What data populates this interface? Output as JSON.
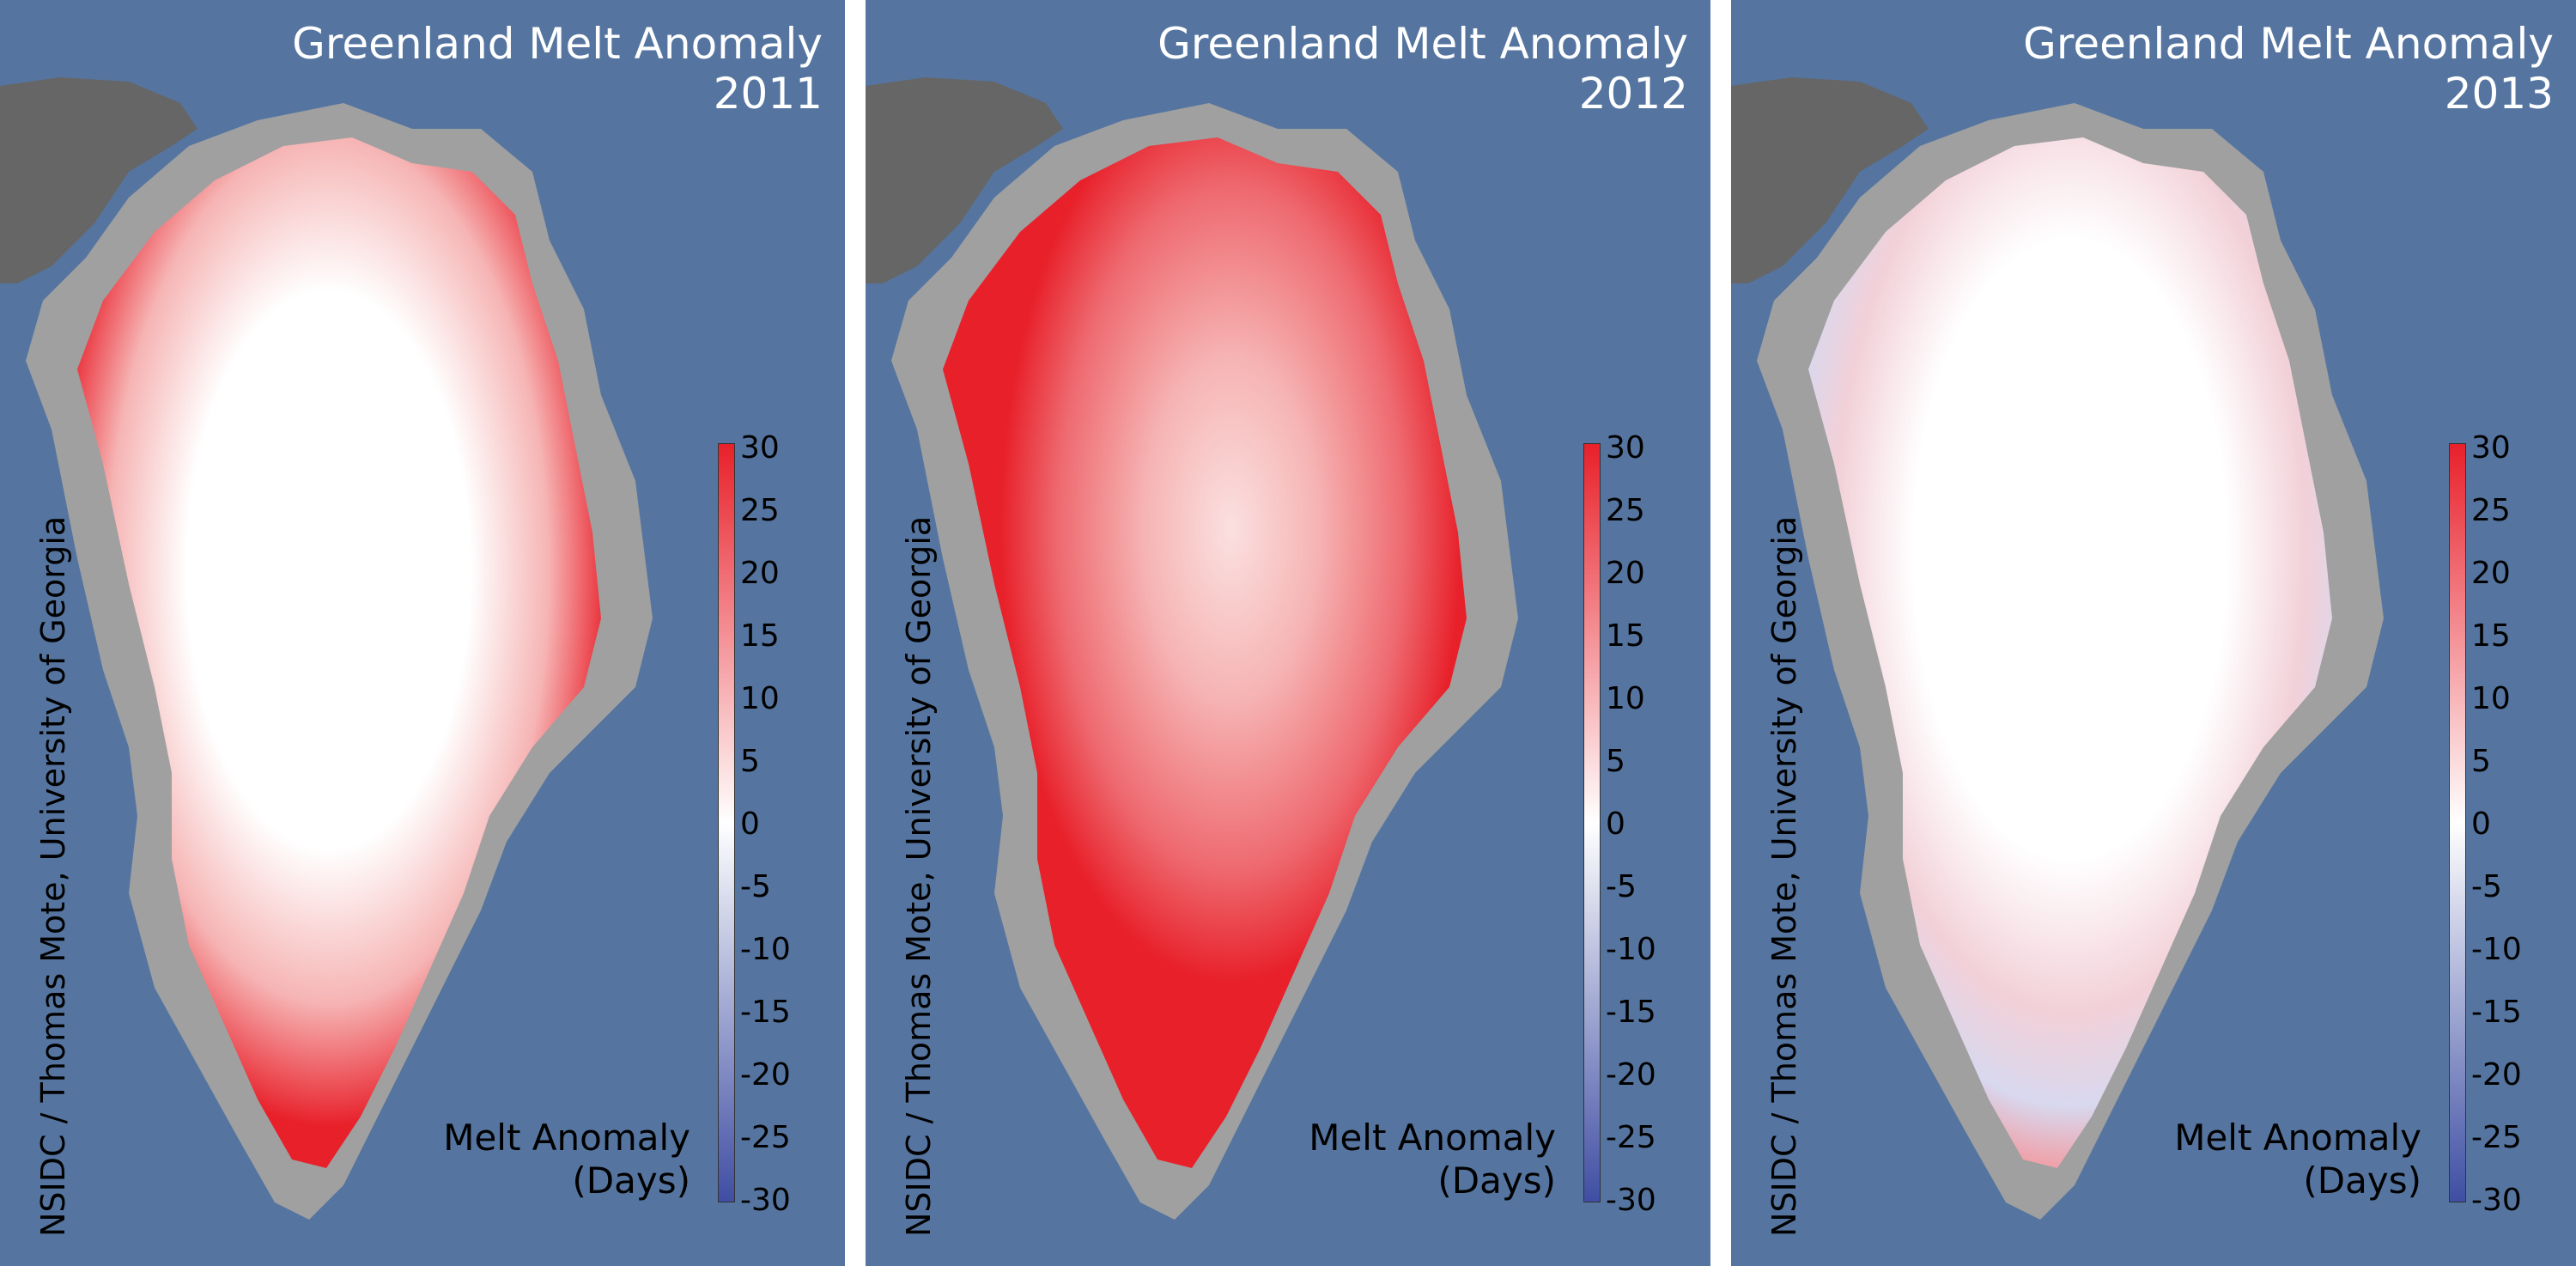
{
  "colors": {
    "ocean": "#5575a0",
    "land": "#666666",
    "ice_margin": "#a0a0a0",
    "positive": "#e8202a",
    "neutral": "#ffffff",
    "negative": "#3f4ea3"
  },
  "panels": [
    {
      "title_line1": "Greenland Melt Anomaly",
      "year": "2011",
      "credit": "NSIDC / Thomas Mote, University of Georgia",
      "legend_title_line1": "Melt Anomaly",
      "legend_title_line2": "(Days)",
      "pattern": "west-and-south-positive"
    },
    {
      "title_line1": "Greenland Melt Anomaly",
      "year": "2012",
      "credit": "NSIDC / Thomas Mote, University of Georgia",
      "legend_title_line1": "Melt Anomaly",
      "legend_title_line2": "(Days)",
      "pattern": "widespread-positive"
    },
    {
      "title_line1": "Greenland Melt Anomaly",
      "year": "2013",
      "credit": "NSIDC / Thomas Mote, University of Georgia",
      "legend_title_line1": "Melt Anomaly",
      "legend_title_line2": "(Days)",
      "pattern": "mixed-near-zero"
    }
  ],
  "colorbar": {
    "ticks": [
      "30",
      "25",
      "20",
      "15",
      "10",
      "5",
      "0",
      "-5",
      "-10",
      "-15",
      "-20",
      "-25",
      "-30"
    ],
    "min": -30,
    "max": 30
  }
}
